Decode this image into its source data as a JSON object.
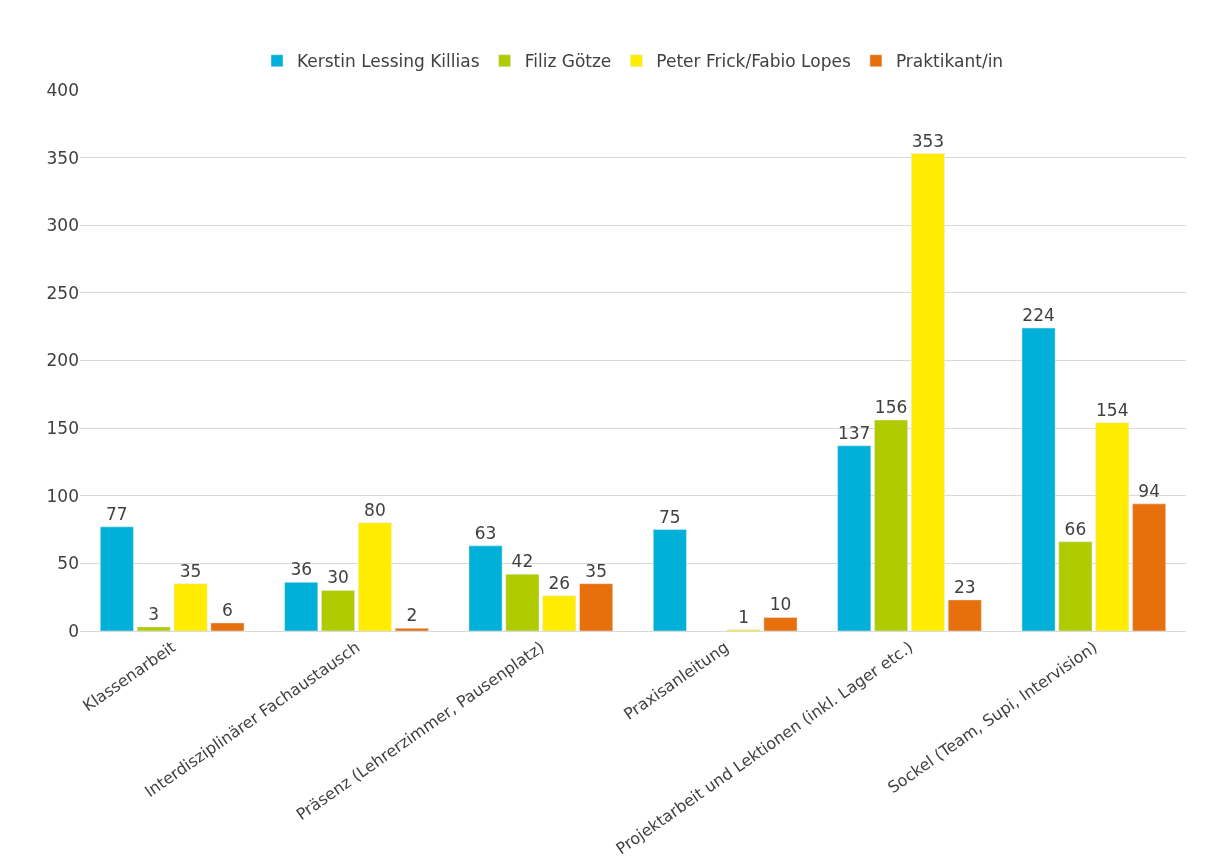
{
  "chart_data": {
    "type": "bar",
    "categories": [
      "Klassenarbeit",
      "Interdisziplinärer Fachaustausch",
      "Präsenz (Lehrerzimmer, Pausenplatz)",
      "Praxisanleitung",
      "Projektarbeit und Lektionen (inkl. Lager etc.)",
      "Sockel (Team, Supi, Intervision)"
    ],
    "series": [
      {
        "name": "Kerstin Lessing Killias",
        "color": "#00b0d8",
        "values": [
          77,
          36,
          63,
          75,
          137,
          224
        ]
      },
      {
        "name": "Filiz Götze",
        "color": "#b0cb00",
        "values": [
          3,
          30,
          42,
          null,
          156,
          66
        ]
      },
      {
        "name": "Peter Frick/Fabio Lopes",
        "color": "#ffec00",
        "values": [
          35,
          80,
          26,
          1,
          353,
          154
        ]
      },
      {
        "name": "Praktikant/in",
        "color": "#e8700c",
        "values": [
          6,
          2,
          35,
          10,
          23,
          94
        ]
      }
    ],
    "ylim": [
      0,
      400
    ],
    "yticks": [
      0,
      50,
      100,
      150,
      200,
      250,
      300,
      350,
      400
    ],
    "grid": "y",
    "legend": "top",
    "data_labels": true
  }
}
